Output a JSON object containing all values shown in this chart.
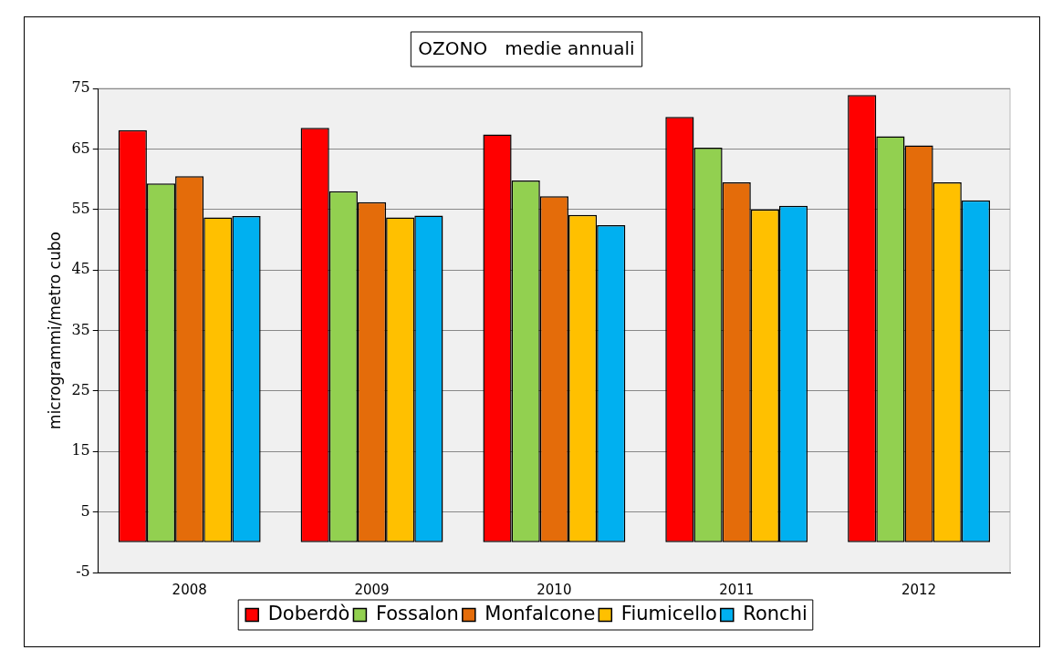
{
  "chart_data": {
    "type": "bar",
    "title": "OZONO   medie annuali",
    "ylabel": "microgrammi/metro cubo",
    "categories": [
      "2008",
      "2009",
      "2010",
      "2011",
      "2012"
    ],
    "series": [
      {
        "name": "Doberdò",
        "color": "#ff0000",
        "values": [
          68.1,
          68.5,
          67.4,
          70.3,
          73.9
        ]
      },
      {
        "name": "Fossalon",
        "color": "#92d050",
        "values": [
          59.3,
          58.0,
          59.8,
          65.2,
          67.1
        ]
      },
      {
        "name": "Monfalcone",
        "color": "#e46c0a",
        "values": [
          60.5,
          56.2,
          57.2,
          59.5,
          65.6
        ]
      },
      {
        "name": "Fiumicello",
        "color": "#ffc000",
        "values": [
          53.7,
          53.7,
          54.1,
          55.0,
          59.5
        ]
      },
      {
        "name": "Ronchi",
        "color": "#00b0f0",
        "values": [
          53.9,
          54.0,
          52.4,
          55.6,
          56.5
        ]
      }
    ],
    "ylim": [
      -5,
      75
    ],
    "yticks": [
      75,
      65,
      55,
      45,
      35,
      25,
      15,
      5,
      -5
    ],
    "grid": "y",
    "legend": "bottom"
  }
}
